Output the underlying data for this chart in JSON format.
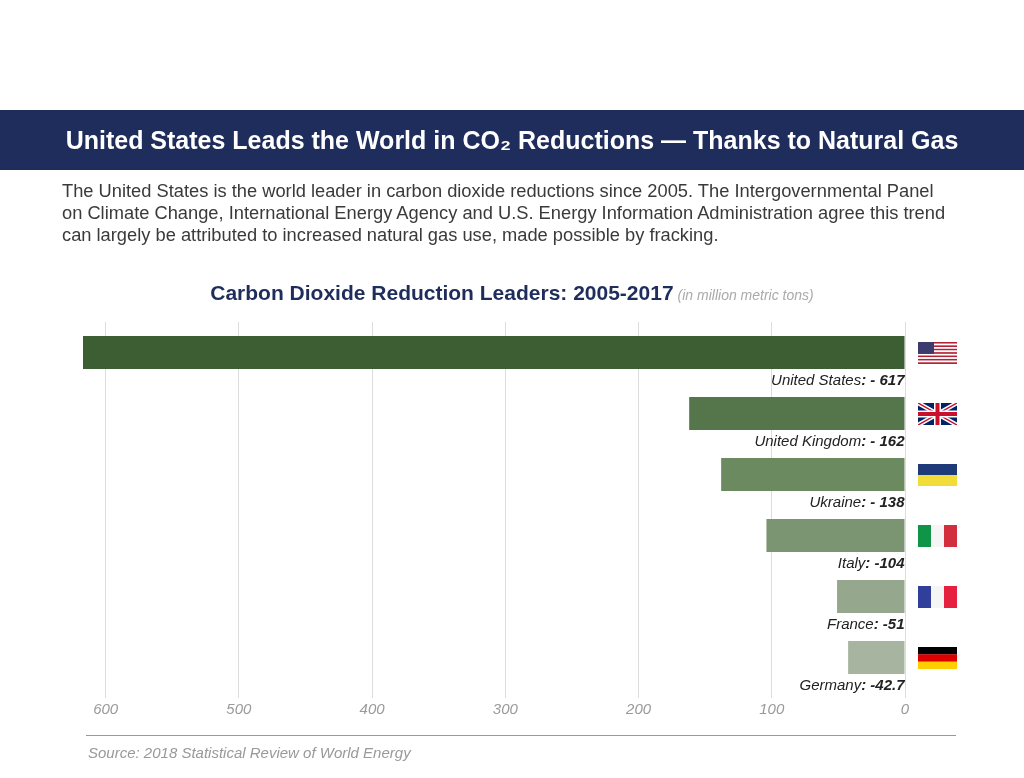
{
  "chart_data": {
    "type": "bar",
    "orientation": "horizontal",
    "title": "United States Leads the World in CO₂ Reductions — Thanks to Natural Gas",
    "subtitle": "The United States is the world leader in carbon dioxide reductions since 2005. The Intergovernmental Panel on Climate Change, International Energy Agency and U.S. Energy Information Administration agree this trend can largely be attributed to increased natural gas use, made possible by fracking.",
    "annotations": [
      "Carbon Dioxide Reduction Leaders: 2005-2017",
      "(in million metric tons)",
      "Source: 2018 Statistical Review of World Energy"
    ],
    "categories": [
      "United States",
      "United Kingdom",
      "Ukraine",
      "Italy",
      "France",
      "Germany"
    ],
    "values": [
      -617,
      -162,
      -138,
      -104,
      -51,
      -42.7
    ],
    "value_labels": [
      ": - 617",
      ": - 162",
      ": - 138",
      ": -104",
      ": -51",
      ": -42.7"
    ],
    "colors": [
      "#3d5e33",
      "#55764a",
      "#6b8a5f",
      "#7b9472",
      "#95a78d",
      "#a7b5a0"
    ],
    "xlim": [
      -620,
      0
    ],
    "xticks": [
      {
        "value": -600,
        "label": "600"
      },
      {
        "value": -500,
        "label": "500"
      },
      {
        "value": -400,
        "label": "400"
      },
      {
        "value": -300,
        "label": "300"
      },
      {
        "value": -200,
        "label": "200"
      },
      {
        "value": -100,
        "label": "100"
      },
      0
    ],
    "grid": "x",
    "tick_labels": "x"
  }
}
